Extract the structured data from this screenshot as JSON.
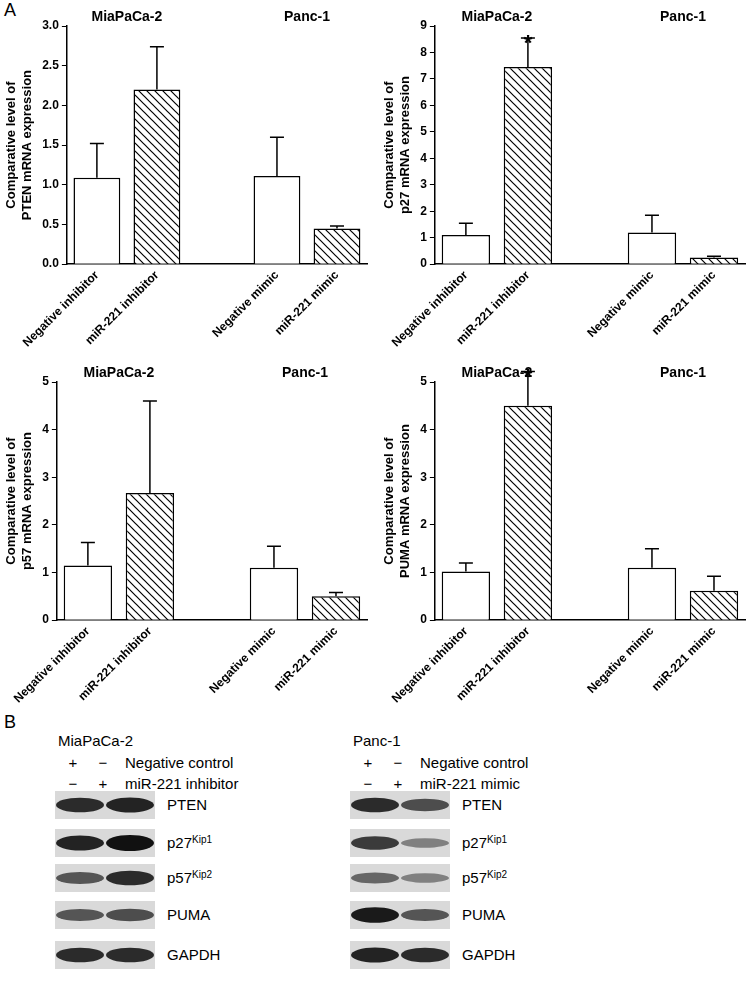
{
  "panel_a_label": "A",
  "chart_data": [
    {
      "type": "bar",
      "group_labels": [
        "MiaPaCa-2",
        "Panc-1"
      ],
      "ylabel": "Comparative level of PTEN mRNA expression",
      "categories": [
        "Negative inhibitor",
        "miR-221 inhibitor",
        null,
        "Negative mimic",
        "miR-221 mimic"
      ],
      "values": [
        1.09,
        2.2,
        null,
        1.11,
        0.45
      ],
      "errors": [
        0.43,
        0.54,
        null,
        0.49,
        0.03
      ],
      "significance": [
        null,
        null,
        null,
        null,
        null
      ],
      "colors": [
        "#ffffff",
        "#000000",
        null,
        "#ffffff",
        "#000000"
      ],
      "ylim": [
        0,
        3
      ],
      "yticks": [
        {
          "value": 0,
          "label": "0.0"
        },
        {
          "value": 0.5,
          "label": "0.5"
        },
        {
          "value": 1,
          "label": "1.0"
        },
        {
          "value": 1.5,
          "label": "1.5"
        },
        {
          "value": 2,
          "label": "2.0"
        },
        {
          "value": 2.5,
          "label": "2.5"
        },
        {
          "value": 3,
          "label": "3.0"
        }
      ],
      "grid": false
    },
    {
      "type": "bar",
      "group_labels": [
        "MiaPaCa-2",
        "Panc-1"
      ],
      "ylabel": "Comparative level of p27 mRNA expression",
      "categories": [
        "Negative inhibitor",
        "miR-221 inhibitor",
        null,
        "Negative mimic",
        "miR-221 mimic"
      ],
      "values": [
        1.1,
        7.45,
        null,
        1.2,
        0.25
      ],
      "errors": [
        0.45,
        1.1,
        null,
        0.65,
        0.05
      ],
      "significance": [
        null,
        "*",
        null,
        null,
        null
      ],
      "colors": [
        "#ffffff",
        "#000000",
        null,
        "#ffffff",
        "#000000"
      ],
      "ylim": [
        0,
        9
      ],
      "yticks": [
        0,
        1,
        2,
        3,
        4,
        5,
        6,
        7,
        8,
        9
      ],
      "grid": false
    },
    {
      "type": "bar",
      "group_labels": [
        "MiaPaCa-2",
        "Panc-1"
      ],
      "ylabel": "Comparative level of p57 mRNA expression",
      "categories": [
        "Negative inhibitor",
        "miR-221 inhibitor",
        null,
        "Negative mimic",
        "miR-221 mimic"
      ],
      "values": [
        1.15,
        2.67,
        null,
        1.1,
        0.5
      ],
      "errors": [
        0.48,
        1.93,
        null,
        0.45,
        0.08
      ],
      "significance": [
        null,
        null,
        null,
        null,
        null
      ],
      "colors": [
        "#ffffff",
        "#000000",
        null,
        "#ffffff",
        "#000000"
      ],
      "ylim": [
        0,
        5
      ],
      "yticks": [
        0,
        1,
        2,
        3,
        4,
        5
      ],
      "grid": false
    },
    {
      "type": "bar",
      "group_labels": [
        "MiaPaCa-2",
        "Panc-1"
      ],
      "ylabel": "Comparative level of PUMA mRNA expression",
      "categories": [
        "Negative inhibitor",
        "miR-221 inhibitor",
        null,
        "Negative mimic",
        "miR-221 mimic"
      ],
      "values": [
        1.02,
        4.5,
        null,
        1.1,
        0.62
      ],
      "errors": [
        0.18,
        0.72,
        null,
        0.4,
        0.3
      ],
      "significance": [
        null,
        "*",
        null,
        null,
        null
      ],
      "colors": [
        "#ffffff",
        "#000000",
        null,
        "#ffffff",
        "#000000"
      ],
      "ylim": [
        0,
        5
      ],
      "yticks": [
        0,
        1,
        2,
        3,
        4,
        5
      ],
      "grid": false
    }
  ],
  "panel_b": {
    "label": "B",
    "blots": [
      {
        "cell_line": "MiaPaCa-2",
        "conditions": [
          {
            "lanes": [
              "+",
              "−"
            ],
            "label": "Negative control"
          },
          {
            "lanes": [
              "−",
              "+"
            ],
            "label": "miR-221 inhibitor"
          }
        ],
        "bands": [
          {
            "name": "PTEN",
            "intensity": [
              0.85,
              0.9
            ]
          },
          {
            "name": "p27",
            "superscript": "Kip1",
            "intensity": [
              0.9,
              1.0
            ]
          },
          {
            "name": "p57",
            "superscript": "Kip2",
            "intensity": [
              0.6,
              0.85
            ]
          },
          {
            "name": "PUMA",
            "intensity": [
              0.6,
              0.65
            ]
          },
          {
            "name": "GAPDH",
            "intensity": [
              0.85,
              0.85
            ]
          }
        ]
      },
      {
        "cell_line": "Panc-1",
        "conditions": [
          {
            "lanes": [
              "+",
              "−"
            ],
            "label": "Negative control"
          },
          {
            "lanes": [
              "−",
              "+"
            ],
            "label": "miR-221 mimic"
          }
        ],
        "bands": [
          {
            "name": "PTEN",
            "intensity": [
              0.85,
              0.65
            ]
          },
          {
            "name": "p27",
            "superscript": "Kip1",
            "intensity": [
              0.75,
              0.35
            ]
          },
          {
            "name": "p57",
            "superscript": "Kip2",
            "intensity": [
              0.5,
              0.35
            ]
          },
          {
            "name": "PUMA",
            "intensity": [
              0.95,
              0.6
            ]
          },
          {
            "name": "GAPDH",
            "intensity": [
              0.9,
              0.85
            ]
          }
        ]
      }
    ]
  }
}
